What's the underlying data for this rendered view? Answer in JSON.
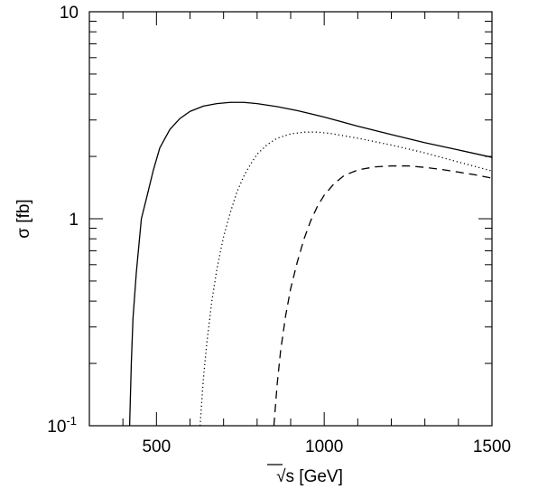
{
  "chart_data": {
    "type": "line",
    "xlabel": "s [GeV]",
    "xlabel_radical": "√",
    "ylabel": "σ [fb]",
    "xlim": [
      300,
      1500
    ],
    "ylim": [
      0.1,
      10
    ],
    "yscale": "log",
    "grid": false,
    "legend": "none",
    "x_ticks": [
      {
        "value": 500,
        "label": "500"
      },
      {
        "value": 1000,
        "label": "1000"
      },
      {
        "value": 1500,
        "label": "1500"
      }
    ],
    "y_ticks": [
      {
        "value": 0.1,
        "base": "10",
        "exp": "-1"
      },
      {
        "value": 1,
        "label": "1"
      },
      {
        "value": 10,
        "label": "10"
      }
    ],
    "series": [
      {
        "style": "solid",
        "x": [
          420,
          425,
          430,
          440,
          455,
          470,
          490,
          510,
          540,
          570,
          600,
          640,
          680,
          720,
          760,
          800,
          860,
          920,
          1000,
          1100,
          1200,
          1300,
          1400,
          1500
        ],
        "y": [
          0.1,
          0.2,
          0.33,
          0.55,
          1.0,
          1.25,
          1.7,
          2.2,
          2.7,
          3.05,
          3.3,
          3.5,
          3.6,
          3.65,
          3.65,
          3.6,
          3.48,
          3.33,
          3.1,
          2.8,
          2.55,
          2.33,
          2.15,
          1.98
        ]
      },
      {
        "style": "dotted",
        "x": [
          630,
          640,
          650,
          665,
          680,
          700,
          720,
          740,
          760,
          780,
          800,
          830,
          860,
          900,
          940,
          980,
          1020,
          1100,
          1200,
          1300,
          1400,
          1500
        ],
        "y": [
          0.1,
          0.17,
          0.25,
          0.4,
          0.57,
          0.82,
          1.07,
          1.35,
          1.6,
          1.83,
          2.05,
          2.28,
          2.45,
          2.57,
          2.62,
          2.62,
          2.58,
          2.45,
          2.27,
          2.08,
          1.88,
          1.7
        ]
      },
      {
        "style": "dashed",
        "x": [
          850,
          860,
          870,
          885,
          900,
          920,
          940,
          960,
          980,
          1000,
          1030,
          1060,
          1100,
          1150,
          1200,
          1250,
          1300,
          1350,
          1400,
          1450,
          1500
        ],
        "y": [
          0.1,
          0.16,
          0.23,
          0.34,
          0.46,
          0.62,
          0.8,
          0.98,
          1.15,
          1.3,
          1.48,
          1.62,
          1.72,
          1.78,
          1.8,
          1.8,
          1.77,
          1.73,
          1.68,
          1.63,
          1.57
        ]
      }
    ]
  }
}
